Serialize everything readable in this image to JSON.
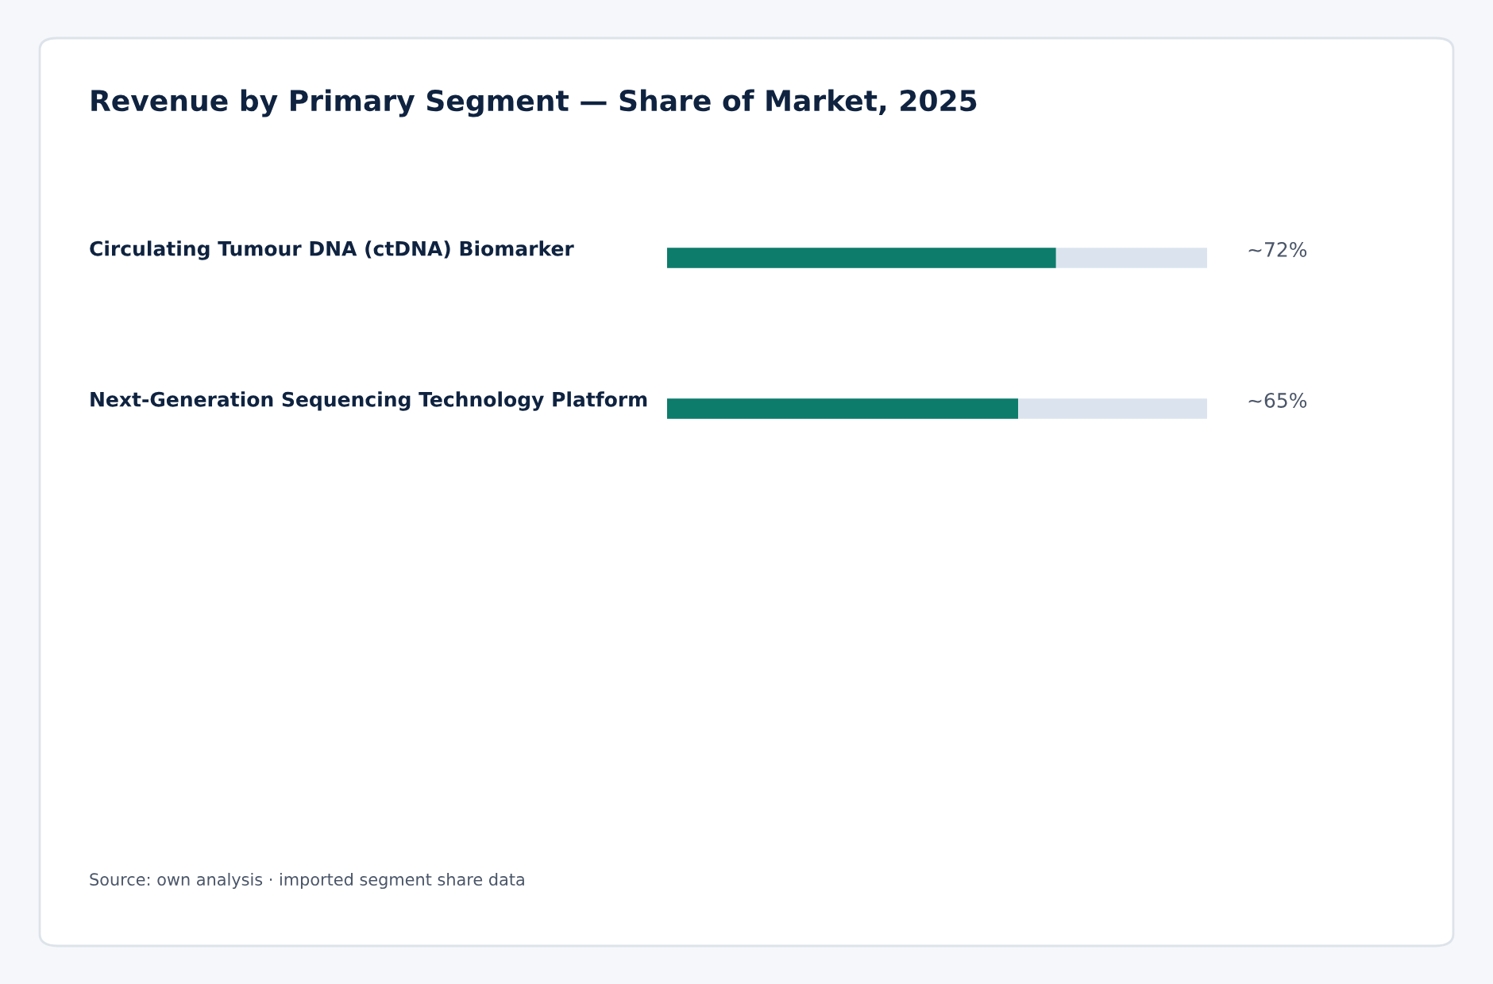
{
  "chart_data": {
    "type": "bar",
    "orientation": "horizontal",
    "title": "Revenue by Primary Segment — Share of Market, 2025",
    "categories": [
      "Circulating Tumour DNA (ctDNA) Biomarker",
      "Next-Generation Sequencing Technology Platform"
    ],
    "values": [
      72,
      65
    ],
    "color": "#0e7c6b",
    "value_labels": [
      "~72%",
      "~65%"
    ],
    "xlim": [
      0,
      100
    ],
    "annotations": [
      "Source: own analysis · imported segment share data"
    ]
  }
}
